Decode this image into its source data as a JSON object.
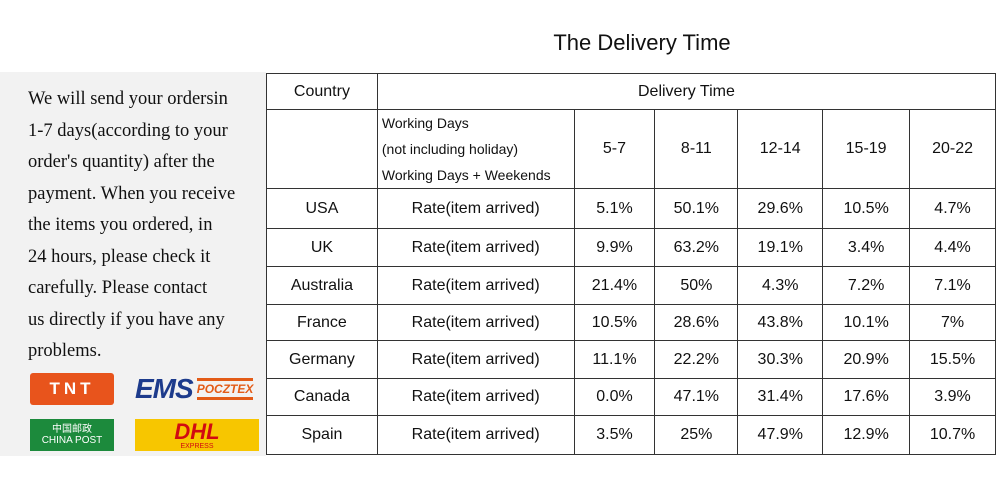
{
  "title": "The Delivery Time",
  "left_text": "We will send your ordersin\n1-7 days(according to your\norder's quantity) after the\npayment. When you receive\n the items you ordered, in\n24  hours, please check it\ncarefully. Please  contact\nus directly if you have any\nproblems.",
  "logos": {
    "tnt": "TNT",
    "ems_main": "EMS",
    "ems_sub": "POCZTEX",
    "chinapost_cn": "中国邮政",
    "chinapost_en": "CHINA POST",
    "dhl_main": "DHL",
    "dhl_sub": "EXPRESS"
  },
  "table": {
    "col_country": "Country",
    "col_delivery": "Delivery Time",
    "working_days_lines": [
      "Working Days",
      "(not including holiday)",
      "Working Days + Weekends"
    ],
    "ranges": [
      "5-7",
      "8-11",
      "12-14",
      "15-19",
      "20-22"
    ],
    "rows": [
      {
        "country": "USA",
        "label": "Rate(item arrived)",
        "values": [
          "5.1%",
          "50.1%",
          "29.6%",
          "10.5%",
          "4.7%"
        ]
      },
      {
        "country": "UK",
        "label": "Rate(item arrived)",
        "values": [
          "9.9%",
          "63.2%",
          "19.1%",
          "3.4%",
          "4.4%"
        ]
      },
      {
        "country": "Australia",
        "label": "Rate(item arrived)",
        "values": [
          "21.4%",
          "50%",
          "4.3%",
          "7.2%",
          "7.1%"
        ]
      },
      {
        "country": "France",
        "label": "Rate(item arrived)",
        "values": [
          "10.5%",
          "28.6%",
          "43.8%",
          "10.1%",
          "7%"
        ]
      },
      {
        "country": "Germany",
        "label": "Rate(item arrived)",
        "values": [
          "11.1%",
          "22.2%",
          "30.3%",
          "20.9%",
          "15.5%"
        ]
      },
      {
        "country": "Canada",
        "label": "Rate(item arrived)",
        "values": [
          "0.0%",
          "47.1%",
          "31.4%",
          "17.6%",
          "3.9%"
        ]
      },
      {
        "country": "Spain",
        "label": "Rate(item arrived)",
        "values": [
          "3.5%",
          "25%",
          "47.9%",
          "12.9%",
          "10.7%"
        ]
      }
    ]
  }
}
